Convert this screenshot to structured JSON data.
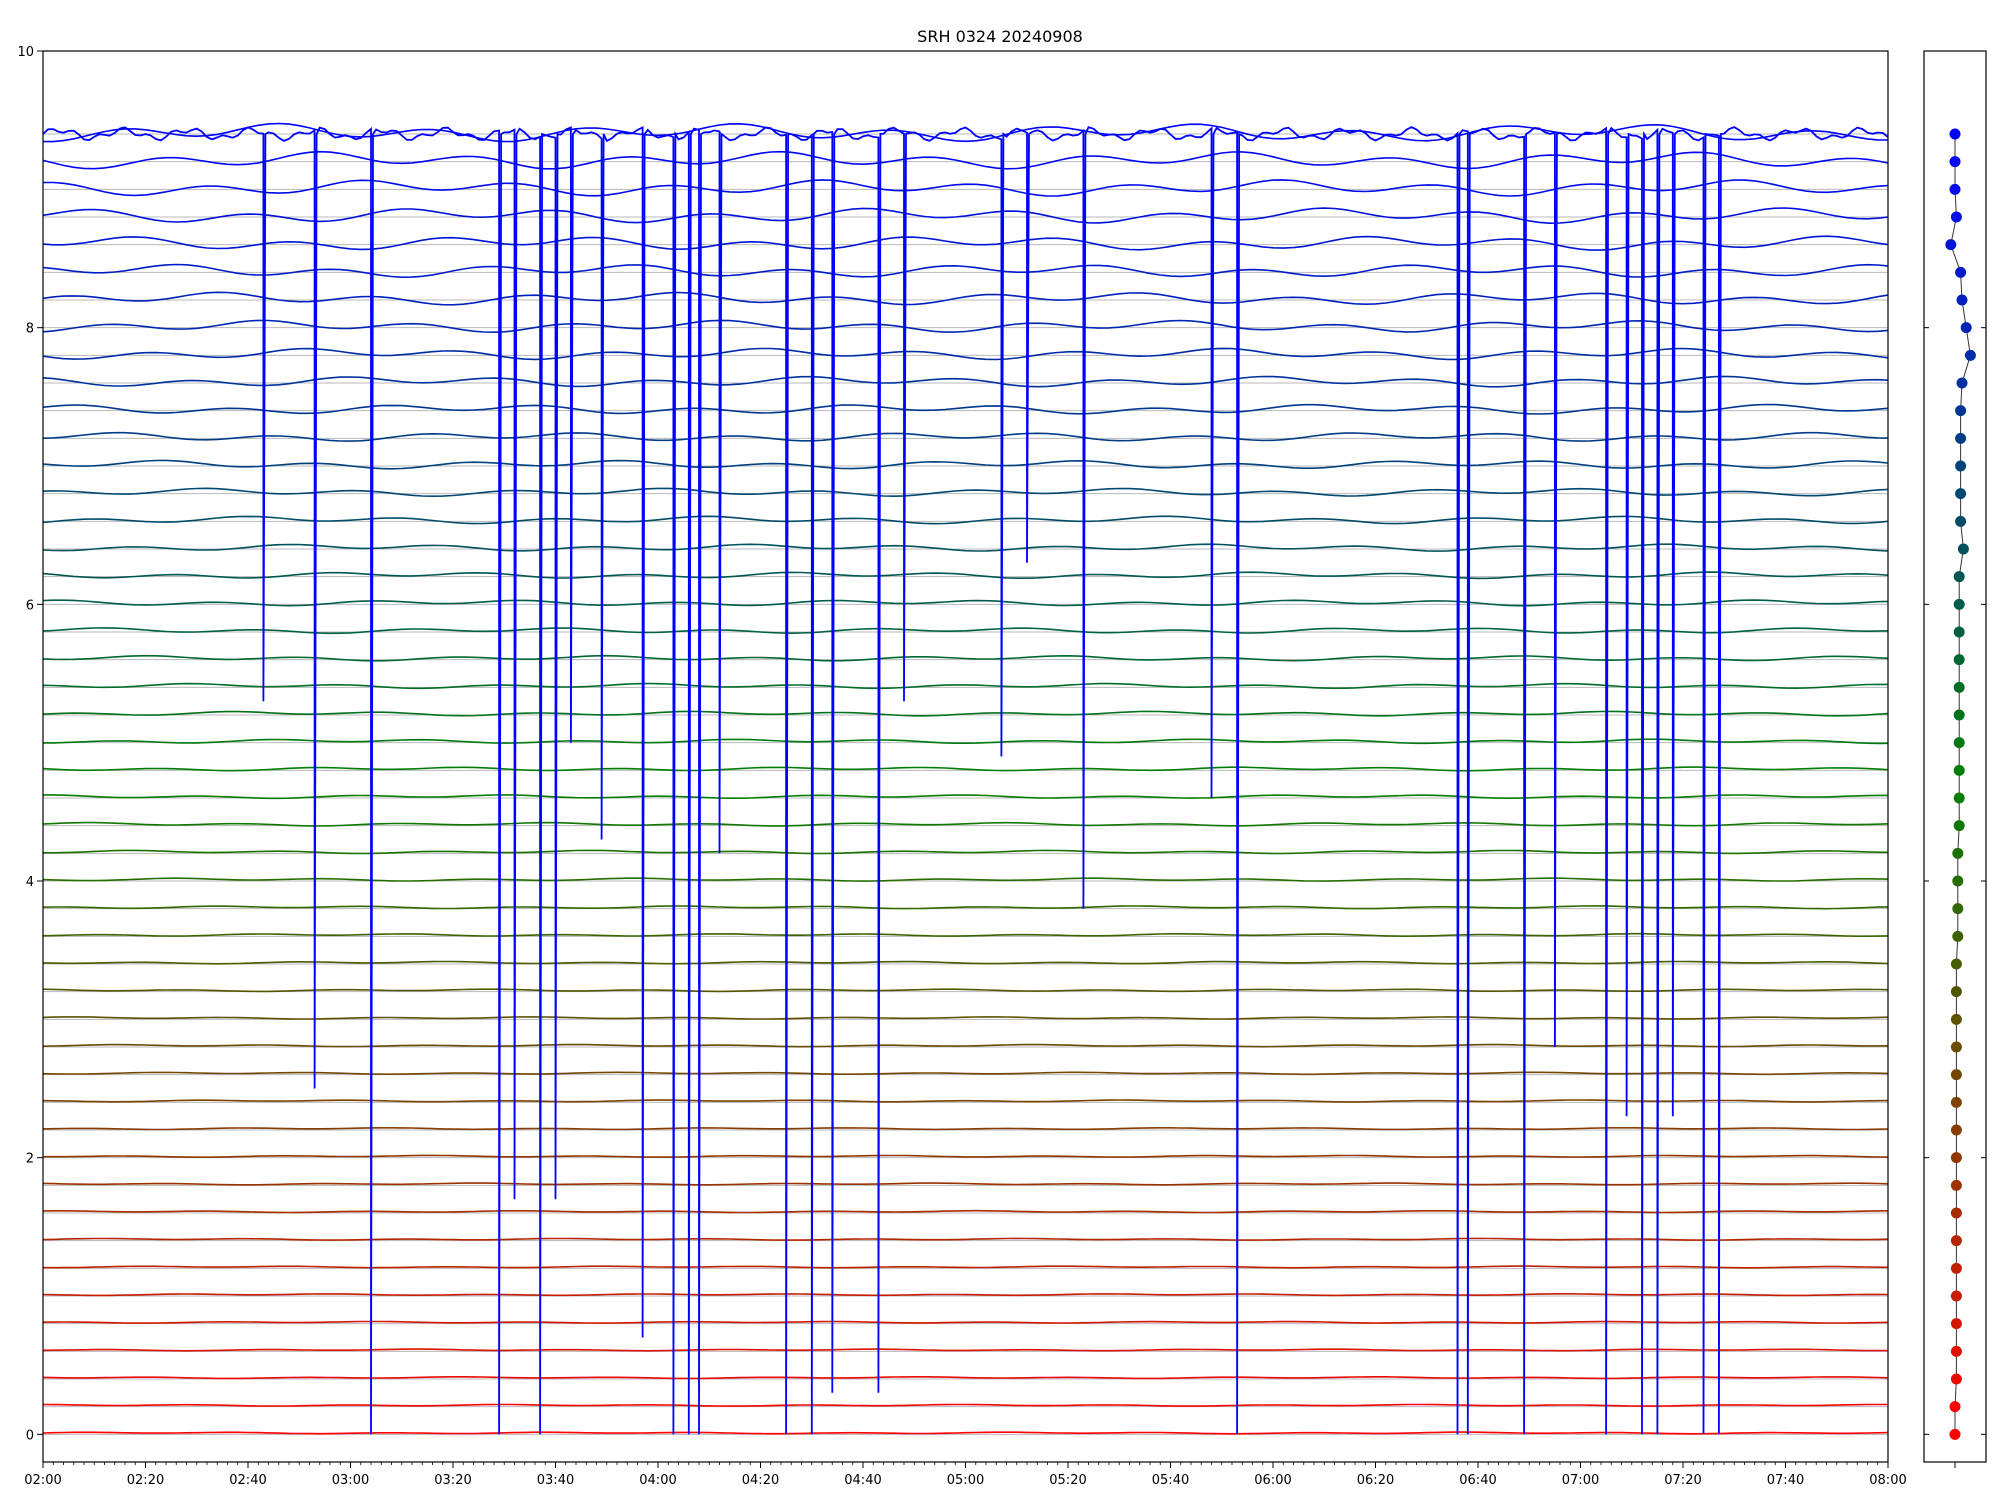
{
  "chart_data": [
    {
      "type": "line",
      "title": "SRH 0324 20240908",
      "xlabel": "",
      "ylabel": "",
      "xlim": [
        "02:00",
        "08:00"
      ],
      "ylim": [
        -0.2,
        10
      ],
      "x_tick_labels": [
        "02:00",
        "02:20",
        "02:40",
        "03:00",
        "03:20",
        "03:40",
        "04:00",
        "04:20",
        "04:40",
        "05:00",
        "05:20",
        "05:40",
        "06:00",
        "06:20",
        "06:40",
        "07:00",
        "07:20",
        "07:40",
        "08:00"
      ],
      "y_tick_labels": [
        "0",
        "2",
        "4",
        "6",
        "8",
        "10"
      ],
      "y_ticks": [
        0,
        2,
        4,
        6,
        8,
        10
      ],
      "grid": "horizontal line at each channel baseline",
      "legend": "none",
      "series_count": 48,
      "series_baselines": [
        0.0,
        0.2,
        0.4,
        0.6,
        0.8,
        1.0,
        1.2,
        1.4,
        1.6,
        1.8,
        2.0,
        2.2,
        2.4,
        2.6,
        2.8,
        3.0,
        3.2,
        3.4,
        3.6,
        3.8,
        4.0,
        4.2,
        4.4,
        4.6,
        4.8,
        5.0,
        5.2,
        5.4,
        5.6,
        5.8,
        6.0,
        6.2,
        6.4,
        6.6,
        6.8,
        7.0,
        7.2,
        7.4,
        7.6,
        7.8,
        8.0,
        8.2,
        8.4,
        8.6,
        8.8,
        9.0,
        9.2,
        9.4
      ],
      "color_scale": [
        "#ff0000",
        "#008000",
        "#0000ff"
      ],
      "dropout_series": {
        "color": "#0000ff",
        "level": 9.4,
        "spike_times": [
          "02:43",
          "02:53",
          "03:04",
          "03:29",
          "03:32",
          "03:37",
          "03:40",
          "03:43",
          "03:49",
          "03:57",
          "04:03",
          "04:06",
          "04:08",
          "04:12",
          "04:25",
          "04:30",
          "04:34",
          "04:43",
          "04:48",
          "05:07",
          "05:12",
          "05:23",
          "05:48",
          "05:53",
          "06:36",
          "06:38",
          "06:49",
          "06:55",
          "07:05",
          "07:09",
          "07:12",
          "07:15",
          "07:18",
          "07:24",
          "07:27"
        ],
        "spike_depths": [
          5.3,
          2.5,
          0.0,
          0.0,
          1.7,
          0.0,
          1.7,
          5.0,
          4.3,
          0.7,
          0.0,
          0.0,
          0.0,
          4.2,
          0.0,
          0.0,
          0.3,
          0.3,
          5.3,
          4.9,
          6.3,
          3.8,
          4.6,
          0.0,
          0.0,
          0.0,
          0.0,
          2.8,
          0.0,
          2.3,
          0.0,
          0.0,
          2.3,
          0.0,
          0.0
        ]
      }
    },
    {
      "type": "scatter",
      "title": "",
      "y_values": [
        9.4,
        9.2,
        9.0,
        8.8,
        8.6,
        8.4,
        8.2,
        8.0,
        7.8,
        7.6,
        7.4,
        7.2,
        7.0,
        6.8,
        6.6,
        6.4,
        6.2,
        6.0,
        5.8,
        5.6,
        5.4,
        5.2,
        5.0,
        4.8,
        4.6,
        4.4,
        4.2,
        4.0,
        3.8,
        3.6,
        3.4,
        3.2,
        3.0,
        2.8,
        2.6,
        2.4,
        2.2,
        2.0,
        1.8,
        1.6,
        1.4,
        1.2,
        1.0,
        0.8,
        0.6,
        0.4,
        0.2,
        0.0
      ],
      "x_values": [
        0.0,
        0.0,
        0.0,
        0.1,
        -0.3,
        0.4,
        0.5,
        0.8,
        1.1,
        0.5,
        0.4,
        0.4,
        0.4,
        0.4,
        0.4,
        0.6,
        0.3,
        0.3,
        0.3,
        0.3,
        0.3,
        0.3,
        0.3,
        0.3,
        0.3,
        0.3,
        0.2,
        0.2,
        0.2,
        0.2,
        0.1,
        0.1,
        0.1,
        0.1,
        0.1,
        0.1,
        0.1,
        0.1,
        0.1,
        0.1,
        0.1,
        0.1,
        0.1,
        0.1,
        0.1,
        0.1,
        0.0,
        0.0
      ],
      "ylim": [
        -0.2,
        10
      ],
      "connected": true,
      "marker": "circle"
    }
  ]
}
